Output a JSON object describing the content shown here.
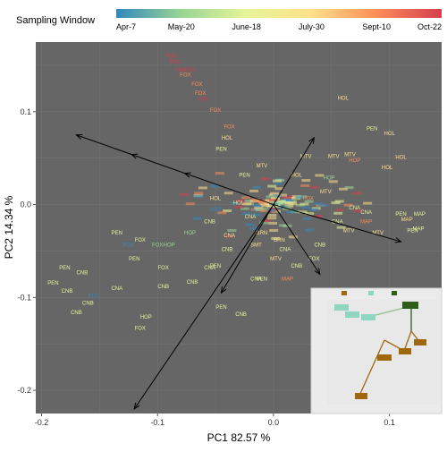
{
  "chart_data": {
    "type": "scatter",
    "title": "",
    "xlabel": "PC1 82.57 %",
    "ylabel": "PC2 14.34 %",
    "xlim": [
      -0.205,
      0.145
    ],
    "ylim": [
      -0.225,
      0.175
    ],
    "xticks": [
      -0.2,
      -0.1,
      0.0,
      0.1
    ],
    "xtick_labels": [
      "-0.2",
      "-0.1",
      "0.0",
      "0.1"
    ],
    "yticks": [
      -0.2,
      -0.1,
      0.0,
      0.1
    ],
    "ytick_labels": [
      "-0.2",
      "-0.1",
      "0.0",
      "0.1"
    ],
    "grid": true,
    "legend": {
      "title": "Sampling Window",
      "placement": "top",
      "labels": [
        "Apr-7",
        "May-20",
        "June-18",
        "July-30",
        "Sept-10",
        "Oct-22"
      ],
      "colors": [
        "#3288bd",
        "#99d594",
        "#e6f598",
        "#fee08b",
        "#fc8d59",
        "#d53e4f"
      ]
    },
    "background_color": "#666666",
    "arrows": [
      {
        "x": -0.17,
        "y": 0.075
      },
      {
        "x": -0.12,
        "y": -0.22
      },
      {
        "x": 0.035,
        "y": 0.072
      },
      {
        "x": 0.11,
        "y": -0.04
      },
      {
        "x": -0.045,
        "y": -0.095
      },
      {
        "x": 0.04,
        "y": -0.075
      }
    ],
    "points": [
      {
        "label": "FOX",
        "x": -0.088,
        "y": 0.158,
        "c": 5
      },
      {
        "label": "FOX",
        "x": -0.085,
        "y": 0.152,
        "c": 5
      },
      {
        "label": "FOX",
        "x": -0.08,
        "y": 0.143,
        "c": 5
      },
      {
        "label": "FOX",
        "x": -0.076,
        "y": 0.138,
        "c": 4
      },
      {
        "label": "FOX",
        "x": -0.072,
        "y": 0.143,
        "c": 5
      },
      {
        "label": "FOX",
        "x": -0.066,
        "y": 0.128,
        "c": 4
      },
      {
        "label": "FOX",
        "x": -0.063,
        "y": 0.118,
        "c": 4
      },
      {
        "label": "FOX",
        "x": -0.06,
        "y": 0.112,
        "c": 5
      },
      {
        "label": "FOX",
        "x": -0.05,
        "y": 0.1,
        "c": 4
      },
      {
        "label": "FOX",
        "x": -0.038,
        "y": 0.082,
        "c": 4
      },
      {
        "label": "HOL",
        "x": -0.04,
        "y": 0.07,
        "c": 3
      },
      {
        "label": "HOL",
        "x": 0.06,
        "y": 0.113,
        "c": 3
      },
      {
        "label": "HOL",
        "x": 0.1,
        "y": 0.075,
        "c": 3
      },
      {
        "label": "HOL",
        "x": 0.11,
        "y": 0.049,
        "c": 3
      },
      {
        "label": "HOL",
        "x": 0.098,
        "y": 0.038,
        "c": 3
      },
      {
        "label": "PEN",
        "x": -0.045,
        "y": 0.058,
        "c": 2
      },
      {
        "label": "PEN",
        "x": 0.085,
        "y": 0.08,
        "c": 2
      },
      {
        "label": "MTV",
        "x": 0.028,
        "y": 0.05,
        "c": 3
      },
      {
        "label": "MTV",
        "x": 0.052,
        "y": 0.05,
        "c": 3
      },
      {
        "label": "MTV",
        "x": 0.066,
        "y": 0.052,
        "c": 3
      },
      {
        "label": "MTV",
        "x": 0.045,
        "y": 0.012,
        "c": 3
      },
      {
        "label": "MTV",
        "x": 0.09,
        "y": -0.032,
        "c": 3
      },
      {
        "label": "MTV",
        "x": 0.065,
        "y": -0.03,
        "c": 3
      },
      {
        "label": "HOP",
        "x": 0.07,
        "y": 0.046,
        "c": 4
      },
      {
        "label": "HOP",
        "x": 0.048,
        "y": 0.027,
        "c": 1
      },
      {
        "label": "HOP",
        "x": -0.05,
        "y": -0.007,
        "c": 0
      },
      {
        "label": "HOP",
        "x": -0.072,
        "y": -0.032,
        "c": 1
      },
      {
        "label": "HOP",
        "x": -0.09,
        "y": -0.045,
        "c": 1
      },
      {
        "label": "HOP",
        "x": -0.11,
        "y": -0.123,
        "c": 2
      },
      {
        "label": "MAP",
        "x": 0.115,
        "y": -0.018,
        "c": 3
      },
      {
        "label": "MAP",
        "x": 0.126,
        "y": -0.012,
        "c": 2
      },
      {
        "label": "MAP",
        "x": 0.125,
        "y": -0.028,
        "c": 2
      },
      {
        "label": "MAP",
        "x": 0.08,
        "y": -0.02,
        "c": 4
      },
      {
        "label": "MAP",
        "x": 0.012,
        "y": -0.082,
        "c": 4
      },
      {
        "label": "PEN",
        "x": 0.11,
        "y": -0.012,
        "c": 2
      },
      {
        "label": "PEN",
        "x": 0.12,
        "y": -0.03,
        "c": 2
      },
      {
        "label": "PEN",
        "x": -0.135,
        "y": -0.032,
        "c": 2
      },
      {
        "label": "PEN",
        "x": -0.12,
        "y": -0.06,
        "c": 2
      },
      {
        "label": "PEN",
        "x": -0.18,
        "y": -0.07,
        "c": 2
      },
      {
        "label": "PEN",
        "x": -0.19,
        "y": -0.086,
        "c": 2
      },
      {
        "label": "PEN",
        "x": -0.05,
        "y": -0.068,
        "c": 2
      },
      {
        "label": "PEN",
        "x": -0.045,
        "y": -0.112,
        "c": 2
      },
      {
        "label": "PEN",
        "x": -0.01,
        "y": -0.082,
        "c": 2
      },
      {
        "label": "CNA",
        "x": 0.07,
        "y": -0.005,
        "c": 2
      },
      {
        "label": "CNA",
        "x": 0.08,
        "y": -0.01,
        "c": 2
      },
      {
        "label": "CNA",
        "x": 0.055,
        "y": -0.02,
        "c": 2
      },
      {
        "label": "CNA",
        "x": 0.01,
        "y": -0.05,
        "c": 2
      },
      {
        "label": "CNA",
        "x": -0.015,
        "y": -0.082,
        "c": 2
      },
      {
        "label": "CNA",
        "x": -0.135,
        "y": -0.092,
        "c": 2
      },
      {
        "label": "CNA",
        "x": -0.055,
        "y": -0.07,
        "c": 2
      },
      {
        "label": "CNA",
        "x": -0.038,
        "y": -0.035,
        "c": 2
      },
      {
        "label": "CNB",
        "x": 0.02,
        "y": -0.068,
        "c": 2
      },
      {
        "label": "CNB",
        "x": -0.04,
        "y": -0.05,
        "c": 2
      },
      {
        "label": "CNB",
        "x": -0.07,
        "y": -0.085,
        "c": 2
      },
      {
        "label": "CNB",
        "x": -0.095,
        "y": -0.09,
        "c": 2
      },
      {
        "label": "CNB",
        "x": -0.165,
        "y": -0.075,
        "c": 2
      },
      {
        "label": "CNB",
        "x": -0.178,
        "y": -0.095,
        "c": 2
      },
      {
        "label": "CNB",
        "x": -0.16,
        "y": -0.108,
        "c": 2
      },
      {
        "label": "CNB",
        "x": -0.17,
        "y": -0.118,
        "c": 2
      },
      {
        "label": "CNB",
        "x": -0.028,
        "y": -0.12,
        "c": 2
      },
      {
        "label": "CNB",
        "x": -0.055,
        "y": -0.02,
        "c": 2
      },
      {
        "label": "FOX",
        "x": 0.035,
        "y": -0.06,
        "c": 2
      },
      {
        "label": "FOX",
        "x": 0.03,
        "y": 0.005,
        "c": 4
      },
      {
        "label": "FOX",
        "x": -0.1,
        "y": -0.045,
        "c": 1
      },
      {
        "label": "FOX",
        "x": -0.115,
        "y": -0.04,
        "c": 2
      },
      {
        "label": "FOX",
        "x": -0.095,
        "y": -0.07,
        "c": 2
      },
      {
        "label": "FOX",
        "x": -0.115,
        "y": -0.135,
        "c": 2
      },
      {
        "label": "FOX",
        "x": -0.155,
        "y": -0.1,
        "c": 0
      },
      {
        "label": "FOX",
        "x": -0.125,
        "y": -0.045,
        "c": 0
      },
      {
        "label": "BRN",
        "x": -0.01,
        "y": -0.032,
        "c": 3
      },
      {
        "label": "BRN",
        "x": 0.005,
        "y": -0.04,
        "c": 3
      },
      {
        "label": "SMT",
        "x": -0.015,
        "y": -0.045,
        "c": 3
      },
      {
        "label": "MTV",
        "x": 0.002,
        "y": -0.06,
        "c": 3
      },
      {
        "label": "HOL",
        "x": -0.05,
        "y": 0.005,
        "c": 3
      },
      {
        "label": "HOL",
        "x": -0.03,
        "y": 0.0,
        "c": 3
      },
      {
        "label": "PEN",
        "x": -0.025,
        "y": 0.03,
        "c": 2
      },
      {
        "label": "MTV",
        "x": -0.01,
        "y": 0.04,
        "c": 3
      },
      {
        "label": "HOL",
        "x": 0.02,
        "y": 0.03,
        "c": 3
      },
      {
        "label": "CNA",
        "x": -0.02,
        "y": -0.015,
        "c": 2
      },
      {
        "label": "CNB",
        "x": 0.04,
        "y": -0.045,
        "c": 2
      }
    ]
  }
}
